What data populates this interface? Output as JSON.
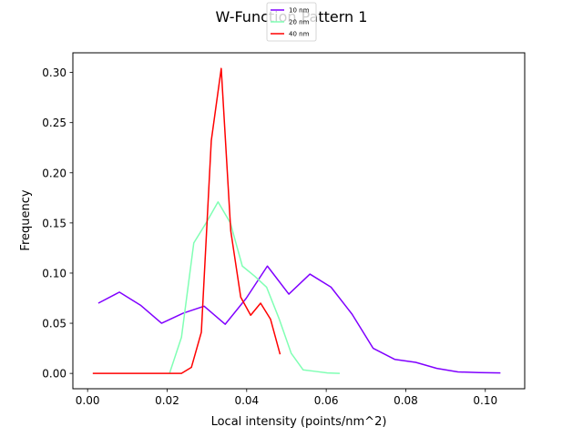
{
  "chart_data": {
    "type": "line",
    "title": "W-Function Pattern 1",
    "xlabel": "Local intensity (points/nm^2)",
    "ylabel": "Frequency",
    "xlim": [
      -0.0037,
      0.1099
    ],
    "ylim": [
      -0.0153,
      0.3196
    ],
    "xticks": [
      0.0,
      0.02,
      0.04,
      0.06,
      0.08,
      0.1
    ],
    "xtick_labels": [
      "0.00",
      "0.02",
      "0.04",
      "0.06",
      "0.08",
      "0.10"
    ],
    "yticks": [
      0.0,
      0.05,
      0.1,
      0.15,
      0.2,
      0.25,
      0.3
    ],
    "ytick_labels": [
      "0.00",
      "0.05",
      "0.10",
      "0.15",
      "0.20",
      "0.25",
      "0.30"
    ],
    "legend": {
      "placement": "top-center",
      "entries": [
        "10 nm",
        "20 nm",
        "40 nm"
      ]
    },
    "grid": false,
    "series": [
      {
        "name": "10 nm",
        "color": "#8000ff",
        "x": [
          0.0027,
          0.008,
          0.0133,
          0.0186,
          0.024,
          0.0293,
          0.0346,
          0.0399,
          0.0452,
          0.0506,
          0.0559,
          0.0612,
          0.0665,
          0.0718,
          0.0772,
          0.0825,
          0.0878,
          0.0931,
          0.0984,
          0.1038
        ],
        "y": [
          0.07,
          0.081,
          0.068,
          0.05,
          0.06,
          0.067,
          0.049,
          0.075,
          0.107,
          0.079,
          0.099,
          0.086,
          0.059,
          0.025,
          0.014,
          0.011,
          0.005,
          0.0015,
          0.0008,
          0.0005
        ]
      },
      {
        "name": "20 nm",
        "color": "#80ffb4",
        "x": [
          0.0206,
          0.0236,
          0.0267,
          0.0298,
          0.0328,
          0.0359,
          0.0389,
          0.042,
          0.045,
          0.0481,
          0.0512,
          0.0542,
          0.0573,
          0.0603,
          0.0634
        ],
        "y": [
          0.0,
          0.036,
          0.13,
          0.15,
          0.171,
          0.15,
          0.107,
          0.097,
          0.086,
          0.055,
          0.02,
          0.0035,
          0.002,
          0.0005,
          0.0
        ]
      },
      {
        "name": "40 nm",
        "color": "#ff0000",
        "x": [
          0.0013,
          0.0038,
          0.0063,
          0.0088,
          0.0112,
          0.0137,
          0.0162,
          0.0187,
          0.0212,
          0.0236,
          0.0261,
          0.0286,
          0.0311,
          0.0336,
          0.036,
          0.0385,
          0.041,
          0.0435,
          0.046,
          0.0484
        ],
        "y": [
          0.0,
          0.0,
          0.0,
          0.0,
          0.0,
          0.0,
          0.0,
          0.0,
          0.0,
          0.0,
          0.006,
          0.041,
          0.232,
          0.304,
          0.142,
          0.076,
          0.058,
          0.07,
          0.054,
          0.019
        ]
      }
    ]
  }
}
